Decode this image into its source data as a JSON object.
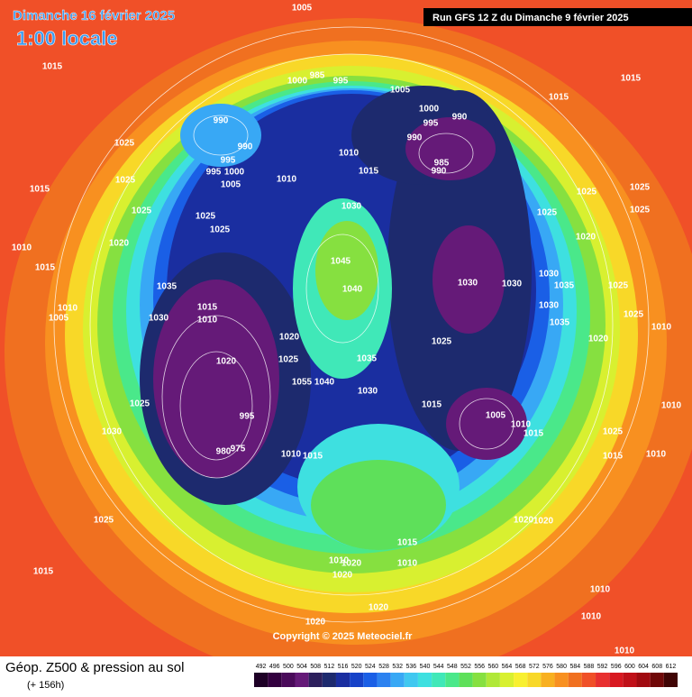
{
  "header": {
    "title": "Dimanche 16 février 2025",
    "time": "1:00 locale",
    "run": "Run GFS 12 Z du Dimanche 9 février 2025"
  },
  "footer": {
    "product": "Géop. Z500 & pression au sol",
    "lead": "(+ 156h)",
    "copyright": "Copyright © 2025 Meteociel.fr"
  },
  "isobar_labels": [
    1005,
    1015,
    985,
    1000,
    995,
    1005,
    1000,
    995,
    990,
    1015,
    1015,
    990,
    990,
    1025,
    995,
    995,
    1000,
    1005,
    990,
    985,
    990,
    1010,
    1015,
    1010,
    1015,
    1025,
    1025,
    1025,
    1025,
    1030,
    1025,
    1025,
    1025,
    1025,
    1020,
    1020,
    1010,
    1015,
    1045,
    1040,
    1035,
    1030,
    1030,
    1030,
    1035,
    1025,
    1015,
    1010,
    1030,
    1010,
    1030,
    1025,
    1005,
    1020,
    1025,
    1035,
    1020,
    1010,
    1020,
    1025,
    1035,
    1055,
    1040,
    1030,
    1025,
    1015,
    1005,
    1010,
    1015,
    1010,
    995,
    1030,
    1025,
    980,
    975,
    1010,
    1015,
    1015,
    1010,
    1025,
    1020,
    1020,
    1015,
    1015,
    1010,
    1020,
    1010,
    1020,
    1010,
    1020,
    1020,
    1010,
    1010
  ],
  "color_scale": {
    "values": [
      492,
      496,
      500,
      504,
      508,
      512,
      516,
      520,
      524,
      528,
      532,
      536,
      540,
      544,
      548,
      552,
      556,
      560,
      564,
      568,
      572,
      576,
      580,
      584,
      588,
      592,
      596,
      600,
      604,
      608,
      612
    ],
    "colors": [
      "#1e0026",
      "#33003f",
      "#4a0a5a",
      "#651a78",
      "#2c1f5c",
      "#1d2a6e",
      "#1a2ea0",
      "#1642c8",
      "#1a5fe6",
      "#2c82f0",
      "#38a8f5",
      "#40c8f0",
      "#3ee0e0",
      "#40e8b8",
      "#4ae88a",
      "#5ee05a",
      "#86e040",
      "#b0e838",
      "#d8f030",
      "#f8f030",
      "#f8d828",
      "#f8b020",
      "#f89020",
      "#f07020",
      "#f05028",
      "#e83030",
      "#d81820",
      "#c01018",
      "#a00a10",
      "#700808",
      "#400404"
    ]
  }
}
